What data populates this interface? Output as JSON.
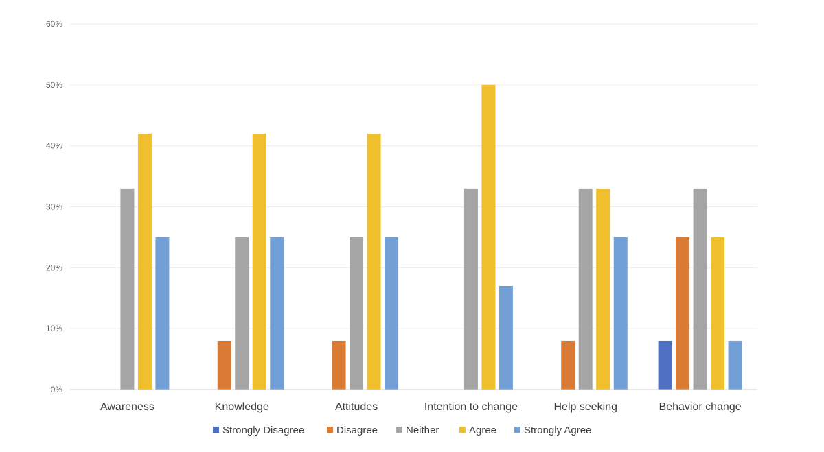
{
  "chart_data": {
    "type": "bar",
    "categories": [
      "Awareness",
      "Knowledge",
      "Attitudes",
      "Intention to change",
      "Help seeking",
      "Behavior change"
    ],
    "series": [
      {
        "name": "Strongly Disagree",
        "color": "#4f6fc2",
        "values": [
          0,
          0,
          0,
          0,
          0,
          8
        ]
      },
      {
        "name": "Disagree",
        "color": "#d97a35",
        "values": [
          0,
          8,
          8,
          0,
          8,
          25
        ]
      },
      {
        "name": "Neither",
        "color": "#a5a5a5",
        "values": [
          33,
          25,
          25,
          33,
          33,
          33
        ]
      },
      {
        "name": "Agree",
        "color": "#f0bf2e",
        "values": [
          42,
          42,
          42,
          50,
          33,
          25
        ]
      },
      {
        "name": "Strongly Agree",
        "color": "#729fd6",
        "values": [
          25,
          25,
          25,
          17,
          25,
          8
        ]
      }
    ],
    "ylim": [
      0,
      60
    ],
    "yticks": [
      0,
      10,
      20,
      30,
      40,
      50,
      60
    ],
    "ytick_labels": [
      "0%",
      "10%",
      "20%",
      "30%",
      "40%",
      "50%",
      "60%"
    ],
    "title": "",
    "xlabel": "",
    "ylabel": "",
    "grid": "horizontal",
    "legend_position": "bottom"
  }
}
